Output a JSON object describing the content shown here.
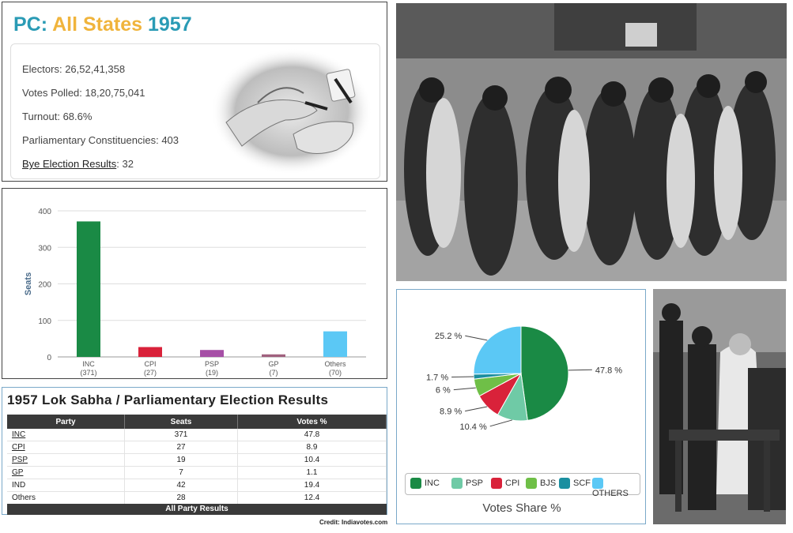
{
  "summary": {
    "title_prefix": "PC:",
    "title_mid": "All States",
    "title_year": "1957",
    "electors": {
      "label": "Electors:",
      "value": "26,52,41,358"
    },
    "votes_polled": {
      "label": "Votes Polled:",
      "value": "18,20,75,041"
    },
    "turnout": {
      "label": "Turnout:",
      "value": "68.6%"
    },
    "constituencies": {
      "label": "Parliamentary Constituencies:",
      "value": "403"
    },
    "bye": {
      "label": "Bye Election Results",
      "value": "32"
    }
  },
  "chart_data": [
    {
      "type": "bar",
      "categories": [
        "INC",
        "CPI",
        "PSP",
        "GP",
        "Others"
      ],
      "category_sublabels": [
        "(371)",
        "(27)",
        "(19)",
        "(7)",
        "(70)"
      ],
      "values": [
        371,
        27,
        19,
        7,
        70
      ],
      "colors": [
        "#1a8a45",
        "#d9223a",
        "#a64fa6",
        "#a0607e",
        "#5bc8f5"
      ],
      "ylabel": "Seats",
      "ylim": [
        0,
        400
      ],
      "yticks": [
        0,
        100,
        200,
        300,
        400
      ],
      "grid": true
    },
    {
      "type": "pie",
      "title": "Votes Share %",
      "labels": [
        "INC",
        "PSP",
        "CPI",
        "BJS",
        "SCF",
        "OTHERS"
      ],
      "values": [
        47.8,
        10.4,
        8.9,
        6,
        1.7,
        25.2
      ],
      "value_labels": [
        "47.8 %",
        "10.4 %",
        "8.9 %",
        "6 %",
        "1.7 %",
        "25.2 %"
      ],
      "colors": [
        "#1a8a45",
        "#6fcaa6",
        "#d9223a",
        "#6fbf47",
        "#1b8fa0",
        "#5bc8f5"
      ],
      "legend": "bottom"
    }
  ],
  "results_table": {
    "title": "1957 Lok Sabha / Parliamentary Election Results",
    "headers": [
      "Party",
      "Seats",
      "Votes %"
    ],
    "rows": [
      [
        "INC",
        "371",
        "47.8"
      ],
      [
        "CPI",
        "27",
        "8.9"
      ],
      [
        "PSP",
        "19",
        "10.4"
      ],
      [
        "GP",
        "7",
        "1.1"
      ],
      [
        "IND",
        "42",
        "19.4"
      ],
      [
        "Others",
        "28",
        "12.4"
      ]
    ],
    "footer": "All Party Results"
  },
  "credit": "Credit: Indiavotes.com"
}
